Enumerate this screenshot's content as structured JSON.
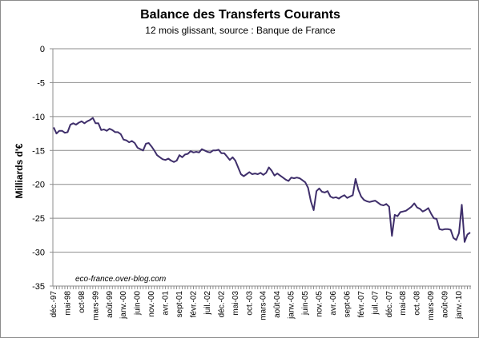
{
  "chart_data": {
    "type": "line",
    "title": "Balance des Transferts Courants",
    "subtitle": "12 mois glissant, source : Banque de France",
    "ylabel": "Milliards d'€",
    "xlabel": "",
    "ylim": [
      -35,
      0
    ],
    "yticks": [
      0,
      -5,
      -10,
      -15,
      -20,
      -25,
      -30,
      -35
    ],
    "grid": true,
    "legend": "none",
    "annotation": "eco-france.over-blog.com",
    "color": "#3f2f6b",
    "x_tick_labels": [
      "déc.-97",
      "mai-98",
      "oct-98",
      "mars-99",
      "août-99",
      "janv.-00",
      "juin-00",
      "nov.-00",
      "avr.-01",
      "sept-01",
      "févr.-02",
      "juil.-02",
      "déc.-02",
      "mai-03",
      "oct.-03",
      "mars-04",
      "août-04",
      "janv.-05",
      "juin-05",
      "nov.-05",
      "avr.-06",
      "sept-06",
      "févr.-07",
      "juil.-07",
      "déc.-07",
      "mai-08",
      "oct.-08",
      "mars-09",
      "août-09",
      "janv.-10"
    ],
    "x_start": "déc.-97",
    "frequency": "monthly",
    "values": [
      -11.6,
      -12.5,
      -12.1,
      -12.1,
      -12.4,
      -12.3,
      -11.2,
      -11.0,
      -11.2,
      -10.9,
      -10.7,
      -11.0,
      -10.7,
      -10.5,
      -10.2,
      -11.0,
      -11.0,
      -12.0,
      -11.9,
      -12.1,
      -11.8,
      -12.0,
      -12.3,
      -12.3,
      -12.6,
      -13.4,
      -13.5,
      -13.8,
      -13.6,
      -13.9,
      -14.6,
      -14.8,
      -15.0,
      -14.0,
      -13.9,
      -14.4,
      -15.0,
      -15.7,
      -16.0,
      -16.3,
      -16.4,
      -16.2,
      -16.5,
      -16.7,
      -16.5,
      -15.7,
      -16.0,
      -15.6,
      -15.5,
      -15.1,
      -15.3,
      -15.2,
      -15.3,
      -14.8,
      -15.0,
      -15.2,
      -15.3,
      -15.0,
      -15.0,
      -14.9,
      -15.4,
      -15.4,
      -15.9,
      -16.4,
      -16.0,
      -16.5,
      -17.5,
      -18.5,
      -18.8,
      -18.5,
      -18.2,
      -18.5,
      -18.4,
      -18.5,
      -18.3,
      -18.6,
      -18.3,
      -17.5,
      -18.0,
      -18.7,
      -18.4,
      -18.7,
      -19.0,
      -19.3,
      -19.5,
      -19.0,
      -19.1,
      -19.0,
      -19.1,
      -19.4,
      -19.7,
      -20.5,
      -22.5,
      -23.8,
      -21.0,
      -20.6,
      -21.1,
      -21.2,
      -21.0,
      -21.8,
      -22.0,
      -21.9,
      -22.1,
      -21.8,
      -21.6,
      -22.0,
      -21.8,
      -21.6,
      -19.2,
      -20.8,
      -21.8,
      -22.3,
      -22.5,
      -22.6,
      -22.5,
      -22.4,
      -22.7,
      -23.0,
      -23.1,
      -22.9,
      -23.3,
      -27.6,
      -24.5,
      -24.7,
      -24.1,
      -24.0,
      -23.9,
      -23.6,
      -23.3,
      -22.8,
      -23.4,
      -23.6,
      -24.0,
      -23.8,
      -23.5,
      -24.3,
      -25.0,
      -25.1,
      -26.6,
      -26.7,
      -26.6,
      -26.6,
      -26.7,
      -27.9,
      -28.2,
      -27.2,
      -23.0,
      -28.5,
      -27.4,
      -27.1
    ]
  }
}
